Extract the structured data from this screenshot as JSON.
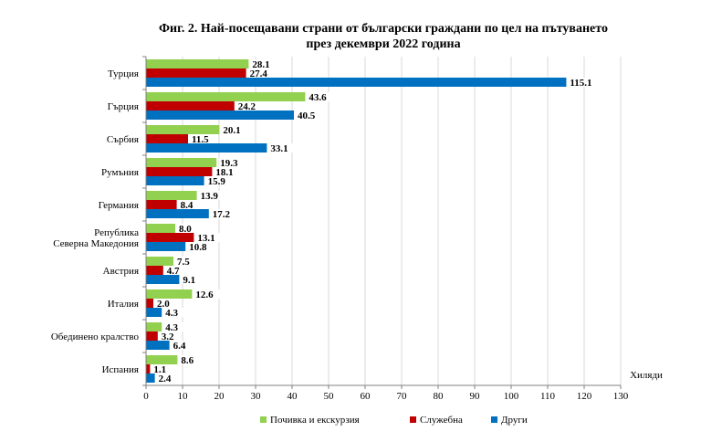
{
  "chart_data": {
    "type": "bar",
    "orientation": "horizontal",
    "title_line1": "Фиг. 2. Най-посещавани страни от български граждани по цел на пътуването",
    "title_line2": "през декември 2022 година",
    "xlabel": "Хиляди",
    "xlim": [
      0,
      130
    ],
    "xticks": [
      0,
      10,
      20,
      30,
      40,
      50,
      60,
      70,
      80,
      90,
      100,
      110,
      120,
      130
    ],
    "grid": true,
    "legend_position": "bottom",
    "categories": [
      [
        "Турция"
      ],
      [
        "Гърция"
      ],
      [
        "Сърбия"
      ],
      [
        "Румъния"
      ],
      [
        "Германия"
      ],
      [
        "Република",
        "Северна Македония"
      ],
      [
        "Австрия"
      ],
      [
        "Италия"
      ],
      [
        "Обединено кралство"
      ],
      [
        "Испания"
      ]
    ],
    "series": [
      {
        "name": "Почивка и екскурзия",
        "color": "#92d050",
        "values": [
          28.1,
          43.6,
          20.1,
          19.3,
          13.9,
          8.0,
          7.5,
          12.6,
          4.3,
          8.6
        ]
      },
      {
        "name": "Служебна",
        "color": "#c00000",
        "values": [
          27.4,
          24.2,
          11.5,
          18.1,
          8.4,
          13.1,
          4.7,
          2.0,
          3.2,
          1.1
        ]
      },
      {
        "name": "Други",
        "color": "#0070c0",
        "values": [
          115.1,
          40.5,
          33.1,
          15.9,
          17.2,
          10.8,
          9.1,
          4.3,
          6.4,
          2.4
        ]
      }
    ]
  }
}
